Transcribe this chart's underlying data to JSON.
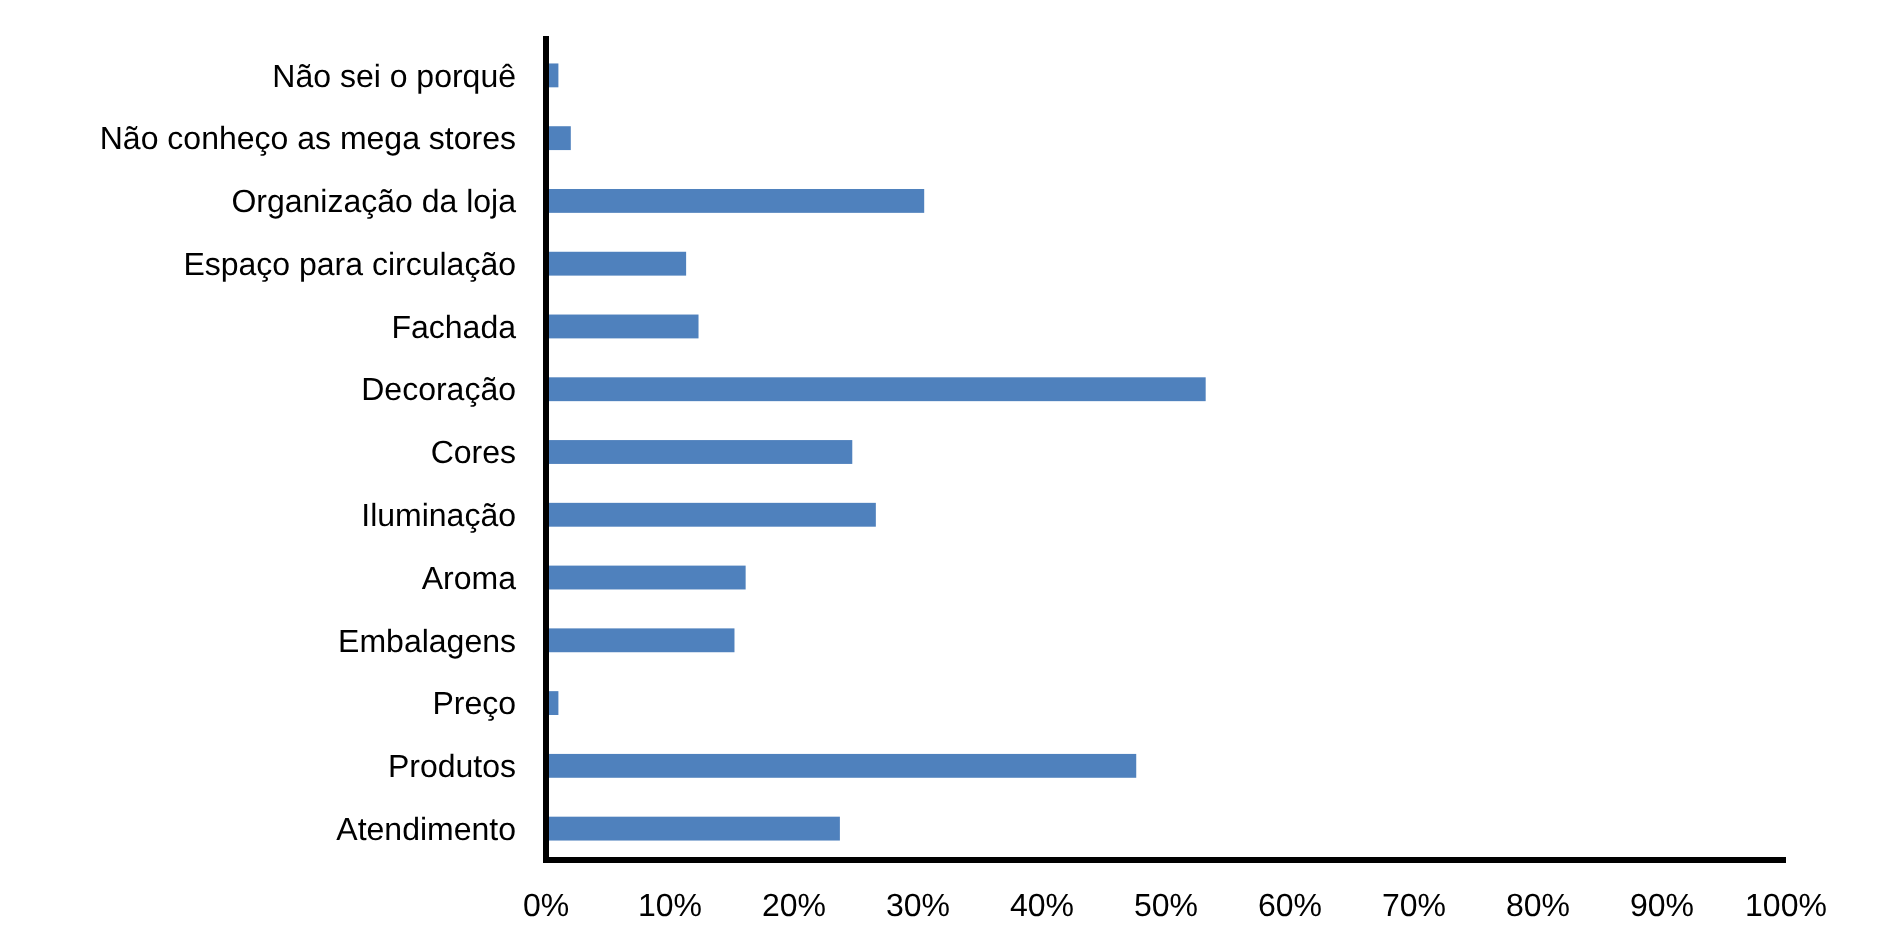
{
  "chart_data": {
    "type": "bar",
    "orientation": "horizontal",
    "categories": [
      "Não sei o porquê",
      "Não conheço as mega stores",
      "Organização da loja",
      "Espaço para circulação",
      "Fachada",
      "Decoração",
      "Cores",
      "Iluminação",
      "Aroma",
      "Embalagens",
      "Preço",
      "Produtos",
      "Atendimento"
    ],
    "values": [
      1.0,
      2.0,
      30.5,
      11.3,
      12.3,
      53.2,
      24.7,
      26.6,
      16.1,
      15.2,
      1.0,
      47.6,
      23.7
    ],
    "color": "#4f81bd",
    "xlim": [
      0,
      100
    ],
    "xticks": [
      {
        "value": 0,
        "label": "0%"
      },
      {
        "value": 10,
        "label": "10%"
      },
      {
        "value": 20,
        "label": "20%"
      },
      {
        "value": 30,
        "label": "30%"
      },
      {
        "value": 40,
        "label": "40%"
      },
      {
        "value": 50,
        "label": "50%"
      },
      {
        "value": 60,
        "label": "60%"
      },
      {
        "value": 70,
        "label": "70%"
      },
      {
        "value": 80,
        "label": "80%"
      },
      {
        "value": 90,
        "label": "90%"
      },
      {
        "value": 100,
        "label": "100%"
      }
    ],
    "grid": false
  }
}
